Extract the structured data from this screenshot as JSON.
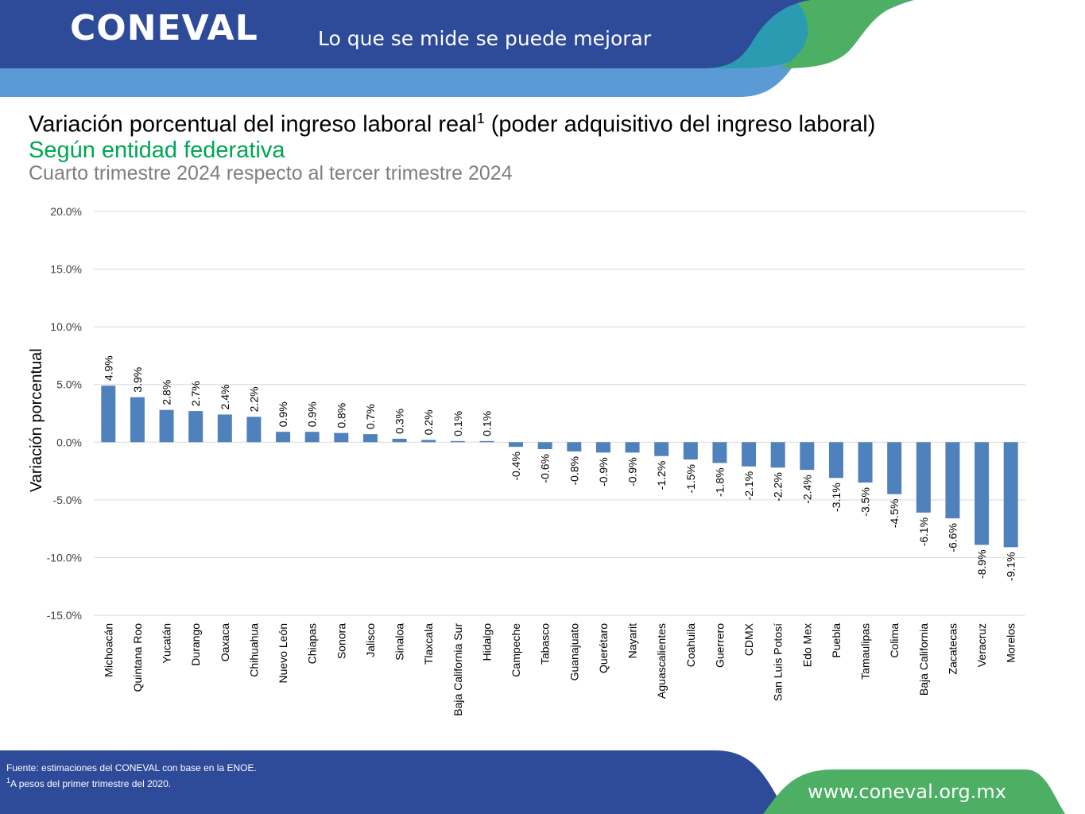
{
  "header": {
    "logo_text": "CONEVAL",
    "slogan": "Lo que se mide se puede mejorar",
    "colors": {
      "dark_blue": "#2e4b9a",
      "light_blue": "#5b9bd5",
      "teal": "#2a9bb0",
      "green": "#4caf63"
    }
  },
  "titles": {
    "title": "Variación porcentual del ingreso laboral real",
    "title_sup": "1",
    "title_after": " (poder adquisitivo del ingreso laboral)",
    "subtitle": "Según entidad federativa",
    "subtitle2": "Cuarto trimestre 2024 respecto al tercer trimestre 2024"
  },
  "chart_data": {
    "type": "bar",
    "title": "",
    "xlabel": "",
    "ylabel": "Variación porcentual",
    "ylim": [
      -15,
      20
    ],
    "yticks": [
      -15,
      -10,
      -5,
      0,
      5,
      10,
      15,
      20
    ],
    "grid": true,
    "bar_color": "#4f81bd",
    "categories": [
      "Michoacán",
      "Quintana Roo",
      "Yucatán",
      "Durango",
      "Oaxaca",
      "Chihuahua",
      "Nuevo León",
      "Chiapas",
      "Sonora",
      "Jalisco",
      "Sinaloa",
      "Tlaxcala",
      "Baja California Sur",
      "Hidalgo",
      "Campeche",
      "Tabasco",
      "Guanajuato",
      "Querétaro",
      "Nayarit",
      "Aguascalientes",
      "Coahuila",
      "Guerrero",
      "CDMX",
      "San Luis Potosí",
      "Edo Mex",
      "Puebla",
      "Tamaulipas",
      "Colima",
      "Baja California",
      "Zacatecas",
      "Veracruz",
      "Morelos"
    ],
    "values": [
      4.9,
      3.9,
      2.8,
      2.7,
      2.4,
      2.2,
      0.9,
      0.9,
      0.8,
      0.7,
      0.3,
      0.2,
      0.1,
      0.1,
      -0.4,
      -0.6,
      -0.8,
      -0.9,
      -0.9,
      -1.2,
      -1.5,
      -1.8,
      -2.1,
      -2.2,
      -2.4,
      -3.1,
      -3.5,
      -4.5,
      -6.1,
      -6.6,
      -8.9,
      -9.1
    ],
    "data_labels": [
      "4.9%",
      "3.9%",
      "2.8%",
      "2.7%",
      "2.4%",
      "2.2%",
      "0.9%",
      "0.9%",
      "0.8%",
      "0.7%",
      "0.3%",
      "0.2%",
      "0.1%",
      "0.1%",
      "-0.4%",
      "-0.6%",
      "-0.8%",
      "-0.9%",
      "-0.9%",
      "-1.2%",
      "-1.5%",
      "-1.8%",
      "-2.1%",
      "-2.2%",
      "-2.4%",
      "-3.1%",
      "-3.5%",
      "-4.5%",
      "-6.1%",
      "-6.6%",
      "-8.9%",
      "-9.1%"
    ],
    "ytick_labels": [
      "-15.0%",
      "-10.0%",
      "-5.0%",
      "0.0%",
      "5.0%",
      "10.0%",
      "15.0%",
      "20.0%"
    ]
  },
  "footer": {
    "source_line1": "Fuente: estimaciones del CONEVAL con base en la ENOE.",
    "source_sup": "1",
    "source_line2": "A pesos del primer trimestre del 2020.",
    "url": "www.coneval.org.mx"
  }
}
